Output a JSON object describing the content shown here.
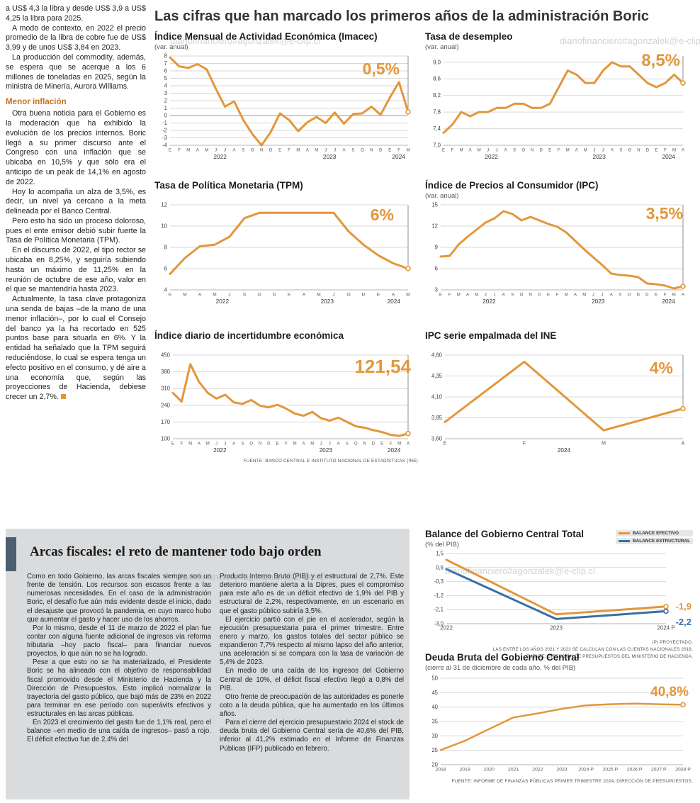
{
  "watermark": "diariofinanciero#agonzalek@e-clip.cl",
  "page": {
    "main_title": "Las cifras que han marcado los primeros años de la administración Boric"
  },
  "left_article": {
    "intro_paragraphs": [
      "a US$ 4,3 la libra y desde US$ 3,9 a US$ 4,25 la libra para 2025.",
      "A modo de contexto, en 2022 el precio promedio de la libra de cobre fue de US$ 3,99 y de unos US$ 3,84 en 2023.",
      "La producción del commodity, además, se espera que se acerque a los 6 millones de toneladas en 2025, según la ministra de Minería, Aurora Williams."
    ],
    "subhead": "Menor inflación",
    "body_paragraphs": [
      "Otra buena noticia para el Gobierno es la moderación que ha exhibido la evolución de los precios internos. Boric llegó a su primer discurso ante el Congreso con una inflación que se ubicaba en 10,5% y que sólo era el anticipo de un peak de 14,1% en agosto de 2022.",
      "Hoy lo acompaña un alza de 3,5%, es decir, un nivel ya cercano a la meta delineada por el Banco Central.",
      "Pero esto ha sido un proceso doloroso, pues el ente emisor debió subir fuerte la Tasa de Política Monetaria (TPM).",
      "En el discurso de 2022, el tipo rector se ubicaba en 8,25%, y seguiría subiendo hasta un máximo de 11,25% en la reunión de octubre de ese año, valor en el que se mantendría hasta 2023.",
      "Actualmente, la tasa clave protagoniza una senda de bajas –de la mano de una menor inflación–, por lo cual el Consejo del banco ya la ha recortado en 525 puntos base para situarla en 6%. Y la entidad ha señalado que la TPM seguirá reduciéndose, lo cual se espera tenga un efecto positivo en el consumo, y dé aire a una economía que, según las proyecciones de Hacienda, debiese crecer un 2,7%."
    ]
  },
  "fiscal_section": {
    "title": "Arcas fiscales: el reto de mantener todo bajo orden",
    "col1_paragraphs": [
      "Como en todo Gobierno, las arcas fiscales siempre son un frente de tensión. Los recursos son escasos frente a las numerosas necesidades. En el caso de la administración Boric, el desafío fue aún más evidente desde el inicio, dado el desajuste que provocó la pandemia, en cuyo marco hubo que aumentar el gasto y hacer uso de los ahorros.",
      "Por lo mismo, desde el 11 de marzo de 2022 el plan fue contar con alguna fuente adicional de ingresos vía reforma tributaria –hoy pacto fiscal– para financiar nuevos proyectos, lo que aún no se ha logrado.",
      "Pese a que esto no se ha materializado, el Presidente Boric se ha alineado con el objetivo de responsabilidad fiscal promovido desde el Ministerio de Hacienda y la Dirección de Presupuestos. Esto implicó normalizar la trayectoria del gasto público, que bajó más de 23% en 2022 para terminar en ese período con superávits efectivos y estructurales en las arcas públicas.",
      "En 2023 el crecimiento del gasto fue de 1,1% real, pero el balance –en medio de una caída de ingresos– pasó a rojo. El déficit efectivo fue de 2,4% del"
    ],
    "col2_paragraphs": [
      "Producto Interno Bruto (PIB) y el estructural de 2,7%. Este deterioro mantiene alerta a la Dipres, pues el compromiso para este año es de un déficit efectivo de 1,9% del PIB y estructural de 2,2%, respectivamente, en un escenario en que el gasto público subiría 3,5%.",
      "El ejercicio partió con el pie en el acelerador, según la ejecución presupuestaria para el primer trimestre. Entre enero y marzo, los gastos totales del sector público se expandieron 7,7% respecto al mismo lapso del año anterior, una aceleración si se compara con la tasa de variación de 5,4% de 2023.",
      "En medio de una caída de los ingresos del Gobierno Central de 10%, el déficit fiscal efectivo llegó a 0,8% del PIB.",
      "Otro frente de preocupación de las autoridades es ponerle coto a la deuda pública, que ha aumentado en los últimos años.",
      "Para el cierre del ejercicio presupuestario 2024 el stock de deuda bruta del Gobierno Central sería de 40,6% del PIB, inferior al 41,2% estimado en el Informe de Finanzas Públicas (IFP) publicado en febrero."
    ]
  },
  "colors": {
    "line_orange": "#E2973B",
    "line_blue": "#3A6EA5"
  },
  "chart_data": [
    {
      "type": "line",
      "title": "Índice Mensual de Actividad Económica (Imacec)",
      "subtitle": "(var. anual)",
      "value_label": "0,5%",
      "ylim": [
        -4,
        8
      ],
      "yticks": [
        [
          8,
          "8"
        ],
        [
          7,
          "7"
        ],
        [
          6,
          "6"
        ],
        [
          5,
          "5"
        ],
        [
          4,
          "4"
        ],
        [
          3,
          "3"
        ],
        [
          2,
          "2"
        ],
        [
          1,
          "1"
        ],
        [
          0,
          "0"
        ],
        [
          -1,
          "-1"
        ],
        [
          -2,
          "-2"
        ],
        [
          -3,
          "-3"
        ],
        [
          -4,
          "-4"
        ]
      ],
      "zero_dark": true,
      "categories": [
        "E",
        "F",
        "M",
        "A",
        "M",
        "J",
        "J",
        "A",
        "S",
        "O",
        "N",
        "D",
        "E",
        "F",
        "M",
        "A",
        "M",
        "J",
        "J",
        "A",
        "S",
        "O",
        "N",
        "D",
        "E",
        "F",
        "M"
      ],
      "year_labels": [
        {
          "label": "2022",
          "f": 0.21
        },
        {
          "label": "2023",
          "f": 0.67
        },
        {
          "label": "2024",
          "f": 0.96
        }
      ],
      "end_line": true,
      "series": [
        {
          "name": "Imacec var. anual",
          "color": "#E2973B",
          "width": 3,
          "values": [
            7.8,
            6.6,
            6.4,
            6.9,
            6.2,
            3.6,
            1.2,
            1.9,
            -0.6,
            -2.5,
            -4.0,
            -2.2,
            0.3,
            -0.6,
            -2.1,
            -0.9,
            -0.2,
            -1.0,
            0.4,
            -1.1,
            0.2,
            0.3,
            1.2,
            0.1,
            2.4,
            4.5,
            0.5
          ]
        }
      ]
    },
    {
      "type": "line",
      "title": "Tasa de desempleo",
      "subtitle": "(var. anual)",
      "value_label": "8,5%",
      "ylim": [
        7,
        9.15
      ],
      "yticks": [
        [
          9,
          "9,0"
        ],
        [
          8.6,
          "8,6"
        ],
        [
          8.2,
          "8,2"
        ],
        [
          7.8,
          "7,8"
        ],
        [
          7.4,
          "7,4"
        ],
        [
          7,
          "7,0"
        ]
      ],
      "categories": [
        "E",
        "F",
        "M",
        "A",
        "M",
        "J",
        "J",
        "A",
        "S",
        "O",
        "N",
        "D",
        "E",
        "F",
        "M",
        "A",
        "M",
        "J",
        "J",
        "A",
        "S",
        "O",
        "N",
        "D",
        "E",
        "F",
        "M",
        "A"
      ],
      "year_labels": [
        {
          "label": "2022",
          "f": 0.2
        },
        {
          "label": "2023",
          "f": 0.65
        },
        {
          "label": "2024",
          "f": 0.94
        }
      ],
      "end_line": true,
      "series": [
        {
          "name": "Tasa de desempleo",
          "color": "#E2973B",
          "width": 3,
          "values": [
            7.3,
            7.5,
            7.8,
            7.7,
            7.8,
            7.8,
            7.9,
            7.9,
            8.0,
            8.0,
            7.9,
            7.9,
            8.0,
            8.4,
            8.8,
            8.7,
            8.5,
            8.5,
            8.8,
            9.0,
            8.9,
            8.9,
            8.7,
            8.5,
            8.4,
            8.5,
            8.7,
            8.5
          ]
        }
      ]
    },
    {
      "type": "line",
      "title": "Tasa de Política Monetaria (TPM)",
      "subtitle": "",
      "value_label": "6%",
      "ylim": [
        4,
        12
      ],
      "yticks": [
        [
          12,
          "12"
        ],
        [
          10,
          "10"
        ],
        [
          8,
          "8"
        ],
        [
          6,
          "6"
        ],
        [
          4,
          "4"
        ]
      ],
      "categories": [
        "E",
        "M",
        "A",
        "M",
        "J",
        "S",
        "O",
        "D",
        "E",
        "A",
        "M",
        "J",
        "O",
        "D",
        "E",
        "A",
        "M"
      ],
      "year_labels": [
        {
          "label": "2022",
          "f": 0.22
        },
        {
          "label": "2023",
          "f": 0.66
        },
        {
          "label": "2024",
          "f": 0.94
        }
      ],
      "end_line": true,
      "series": [
        {
          "name": "TPM",
          "color": "#E2973B",
          "width": 3,
          "values": [
            5.5,
            7.0,
            8.1,
            8.25,
            9.0,
            10.75,
            11.25,
            11.25,
            11.25,
            11.25,
            11.25,
            11.25,
            9.5,
            8.25,
            7.25,
            6.5,
            6.0
          ]
        }
      ]
    },
    {
      "type": "line",
      "title": "Índice de Precios al Consumidor (IPC)",
      "subtitle": "(var. anual)",
      "value_label": "3,5%",
      "ylim": [
        3,
        15
      ],
      "yticks": [
        [
          15,
          "15"
        ],
        [
          12,
          "12"
        ],
        [
          9,
          "9"
        ],
        [
          6,
          "6"
        ],
        [
          3,
          "3"
        ]
      ],
      "categories": [
        "E",
        "F",
        "M",
        "A",
        "M",
        "J",
        "J",
        "A",
        "S",
        "O",
        "N",
        "D",
        "E",
        "F",
        "M",
        "A",
        "M",
        "J",
        "J",
        "A",
        "S",
        "O",
        "N",
        "D",
        "E",
        "F",
        "M",
        "A"
      ],
      "year_labels": [
        {
          "label": "2022",
          "f": 0.2
        },
        {
          "label": "2023",
          "f": 0.65
        },
        {
          "label": "2024",
          "f": 0.94
        }
      ],
      "end_line": true,
      "series": [
        {
          "name": "IPC var. anual",
          "color": "#E2973B",
          "width": 3,
          "values": [
            7.7,
            7.8,
            9.4,
            10.5,
            11.5,
            12.5,
            13.1,
            14.1,
            13.7,
            12.8,
            13.3,
            12.8,
            12.3,
            11.9,
            11.1,
            9.9,
            8.7,
            7.6,
            6.5,
            5.3,
            5.1,
            5.0,
            4.8,
            3.9,
            3.8,
            3.6,
            3.2,
            3.5
          ]
        }
      ]
    },
    {
      "type": "line",
      "title": "Índice diario de incertidumbre económica",
      "subtitle": "",
      "value_label": "121,54",
      "ylim": [
        100,
        450
      ],
      "yticks": [
        [
          450,
          "450"
        ],
        [
          380,
          "380"
        ],
        [
          310,
          "310"
        ],
        [
          240,
          "240"
        ],
        [
          170,
          "170"
        ],
        [
          100,
          "100"
        ]
      ],
      "categories": [
        "E",
        "F",
        "M",
        "A",
        "M",
        "J",
        "J",
        "A",
        "S",
        "O",
        "N",
        "D",
        "E",
        "F",
        "M",
        "A",
        "M",
        "J",
        "J",
        "A",
        "S",
        "O",
        "N",
        "D",
        "E",
        "F",
        "M",
        "A"
      ],
      "year_labels": [
        {
          "label": "2022",
          "f": 0.2
        },
        {
          "label": "2023",
          "f": 0.65
        },
        {
          "label": "2024",
          "f": 0.94
        }
      ],
      "end_line": true,
      "source": "FUENTE: BANCO CENTRAL E INSTITUTO NACIONAL DE ESTADÍSTICAS (INE)",
      "series": [
        {
          "name": "Incertidumbre económica",
          "color": "#E2973B",
          "width": 3,
          "values": [
            292,
            255,
            412,
            338,
            292,
            268,
            284,
            252,
            246,
            262,
            238,
            231,
            242,
            226,
            205,
            196,
            212,
            186,
            176,
            188,
            170,
            152,
            146,
            136,
            128,
            116,
            112,
            121.54
          ]
        }
      ]
    },
    {
      "type": "line",
      "title": "IPC serie empalmada del INE",
      "subtitle": "",
      "value_label": "4%",
      "ylim": [
        3.6,
        4.6
      ],
      "yticks": [
        [
          4.6,
          "4,60"
        ],
        [
          4.35,
          "4,35"
        ],
        [
          4.1,
          "4,10"
        ],
        [
          3.85,
          "3,85"
        ],
        [
          3.6,
          "3,60"
        ]
      ],
      "categories": [
        "E",
        "F",
        "M",
        "A"
      ],
      "year_labels": [
        {
          "label": "2024",
          "f": 0.5
        }
      ],
      "end_line": true,
      "series": [
        {
          "name": "IPC serie empalmada",
          "color": "#E2973B",
          "width": 3,
          "values": [
            3.8,
            4.52,
            3.7,
            3.96
          ]
        }
      ]
    },
    {
      "type": "line",
      "title": "Balance del Gobierno Central Total",
      "subtitle": "(% del PIB)",
      "value_labels": [
        "-1,9",
        "-2,2"
      ],
      "ylim": [
        -3,
        1.5
      ],
      "yticks": [
        [
          1.5,
          "1,5"
        ],
        [
          0.6,
          "0,6"
        ],
        [
          -0.3,
          "-0,3"
        ],
        [
          -1.2,
          "-1,2"
        ],
        [
          -2.1,
          "-2,1"
        ],
        [
          -3,
          "-3,0"
        ]
      ],
      "categories": [
        "2022",
        "2023",
        "2024 P"
      ],
      "end_line": false,
      "notes": [
        "(P) PROYECTADO.",
        "LAS ENTRE LOS AÑOS 2021 Y 2023 SE CALCULAN CON LAS CUENTAS NACIONALES 2018.",
        "FUENTE: DIRECCIÓN DE PRESUPUESTOS DEL MINISTERIO DE HACIENDA."
      ],
      "series": [
        {
          "name": "BALANCE EFECTIVO",
          "color": "#E2973B",
          "width": 3,
          "values": [
            1.1,
            -2.4,
            -1.9
          ]
        },
        {
          "name": "BALANCE ESTRUCTURAL",
          "color": "#3A6EA5",
          "width": 3,
          "values": [
            0.5,
            -2.7,
            -2.2
          ]
        }
      ]
    },
    {
      "type": "line",
      "title": "Deuda Bruta del Gobierno Central",
      "subtitle": "(cierre al 31 de diciembre de cada año, % del PIB)",
      "value_label": "40,8%",
      "ylim": [
        20,
        50
      ],
      "yticks": [
        [
          50,
          "50"
        ],
        [
          45,
          "45"
        ],
        [
          40,
          "40"
        ],
        [
          35,
          "35"
        ],
        [
          30,
          "30"
        ],
        [
          25,
          "25"
        ],
        [
          20,
          "20"
        ]
      ],
      "categories": [
        "2018",
        "2019",
        "2020",
        "2021",
        "2022",
        "2023",
        "2024 P",
        "2025 P",
        "2026 P",
        "2027 P",
        "2028 P"
      ],
      "end_line": false,
      "source": "FUENTE: INFORME DE FINANZAS PÚBLICAS PRIMER TRIMESTRE 2024, DIRECCIÓN DE PRESUPUESTOS.",
      "series": [
        {
          "name": "Deuda bruta",
          "color": "#E2973B",
          "width": 2.5,
          "values": [
            25.1,
            28.3,
            32.4,
            36.4,
            37.8,
            39.4,
            40.6,
            41.0,
            41.2,
            41.0,
            40.8
          ]
        }
      ]
    }
  ]
}
